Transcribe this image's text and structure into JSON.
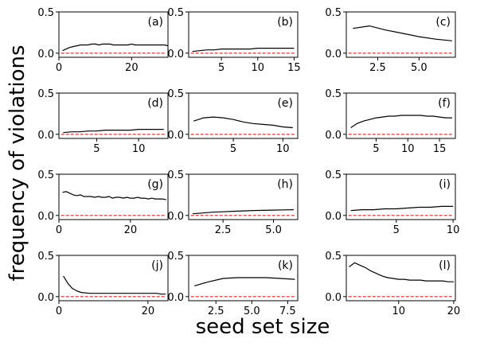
{
  "figure": {
    "ylabel": "frequency of violations",
    "xlabel": "seed set size"
  },
  "chart_data": [
    {
      "type": "line",
      "panel_label": "(a)",
      "x": [
        1,
        2,
        3,
        4,
        5,
        6,
        7,
        8,
        9,
        10,
        11,
        12,
        13,
        14,
        15,
        16,
        17,
        18,
        19,
        20,
        21,
        22,
        23,
        24,
        25,
        26,
        27,
        28,
        29,
        30
      ],
      "y": [
        0.03,
        0.05,
        0.07,
        0.08,
        0.09,
        0.1,
        0.1,
        0.1,
        0.11,
        0.11,
        0.1,
        0.11,
        0.11,
        0.11,
        0.1,
        0.1,
        0.1,
        0.1,
        0.1,
        0.11,
        0.1,
        0.1,
        0.1,
        0.1,
        0.1,
        0.1,
        0.1,
        0.1,
        0.1,
        0.09
      ],
      "reference_y": 0.0,
      "xlim": [
        0,
        30
      ],
      "ylim": [
        -0.05,
        0.5
      ],
      "xticks": [
        0,
        20
      ],
      "xtick_labels": [
        "0",
        "20"
      ],
      "yticks": [
        0.0,
        0.5
      ],
      "ytick_labels": [
        "0.0",
        "0.5"
      ]
    },
    {
      "type": "line",
      "panel_label": "(b)",
      "x": [
        1,
        2,
        3,
        4,
        5,
        6,
        7,
        8,
        9,
        10,
        11,
        12,
        13,
        14,
        15
      ],
      "y": [
        0.02,
        0.03,
        0.04,
        0.04,
        0.05,
        0.05,
        0.05,
        0.05,
        0.05,
        0.06,
        0.06,
        0.06,
        0.06,
        0.06,
        0.06
      ],
      "reference_y": 0.0,
      "xlim": [
        0.5,
        15.5
      ],
      "ylim": [
        -0.05,
        0.5
      ],
      "xticks": [
        5,
        10,
        15
      ],
      "xtick_labels": [
        "5",
        "10",
        "15"
      ],
      "yticks": [
        0.0,
        0.5
      ],
      "ytick_labels": [
        "0.0",
        "0.5"
      ]
    },
    {
      "type": "line",
      "panel_label": "(c)",
      "x": [
        1,
        2,
        3,
        4,
        5,
        6,
        7
      ],
      "y": [
        0.3,
        0.33,
        0.28,
        0.24,
        0.2,
        0.17,
        0.15
      ],
      "reference_y": 0.0,
      "xlim": [
        0.6,
        7.2
      ],
      "ylim": [
        -0.05,
        0.5
      ],
      "xticks": [
        2.5,
        5.0
      ],
      "xtick_labels": [
        "2.5",
        "5.0"
      ],
      "yticks": [
        0.0,
        0.5
      ],
      "ytick_labels": [
        "0.0",
        "0.5"
      ]
    },
    {
      "type": "line",
      "panel_label": "(d)",
      "x": [
        1,
        2,
        3,
        4,
        5,
        6,
        7,
        8,
        9,
        10,
        11,
        12,
        13
      ],
      "y": [
        0.02,
        0.03,
        0.03,
        0.04,
        0.04,
        0.05,
        0.05,
        0.05,
        0.05,
        0.06,
        0.06,
        0.06,
        0.06
      ],
      "reference_y": 0.0,
      "xlim": [
        0.5,
        13.5
      ],
      "ylim": [
        -0.05,
        0.5
      ],
      "xticks": [
        5,
        10
      ],
      "xtick_labels": [
        "5",
        "10"
      ],
      "yticks": [
        0.0,
        0.5
      ],
      "ytick_labels": [
        "0.0",
        "0.5"
      ]
    },
    {
      "type": "line",
      "panel_label": "(e)",
      "x": [
        1,
        2,
        3,
        4,
        5,
        6,
        7,
        8,
        9,
        10,
        11
      ],
      "y": [
        0.16,
        0.2,
        0.21,
        0.2,
        0.18,
        0.15,
        0.13,
        0.12,
        0.11,
        0.09,
        0.08
      ],
      "reference_y": 0.0,
      "xlim": [
        0.5,
        11.5
      ],
      "ylim": [
        -0.05,
        0.5
      ],
      "xticks": [
        5,
        10
      ],
      "xtick_labels": [
        "5",
        "10"
      ],
      "yticks": [
        0.0,
        0.5
      ],
      "ytick_labels": [
        "0.0",
        "0.5"
      ]
    },
    {
      "type": "line",
      "panel_label": "(f)",
      "x": [
        1,
        2,
        3,
        4,
        5,
        6,
        7,
        8,
        9,
        10,
        11,
        12,
        13,
        14,
        15,
        16,
        17
      ],
      "y": [
        0.08,
        0.13,
        0.16,
        0.18,
        0.2,
        0.21,
        0.22,
        0.22,
        0.23,
        0.23,
        0.23,
        0.23,
        0.22,
        0.22,
        0.21,
        0.2,
        0.2
      ],
      "reference_y": 0.0,
      "xlim": [
        0.3,
        17.5
      ],
      "ylim": [
        -0.05,
        0.5
      ],
      "xticks": [
        5,
        10,
        15
      ],
      "xtick_labels": [
        "5",
        "10",
        "15"
      ],
      "yticks": [
        0.0,
        0.5
      ],
      "ytick_labels": [
        "0.0",
        "0.5"
      ]
    },
    {
      "type": "line",
      "panel_label": "(g)",
      "x": [
        1,
        2,
        3,
        4,
        5,
        6,
        7,
        8,
        9,
        10,
        11,
        12,
        13,
        14,
        15,
        16,
        17,
        18,
        19,
        20,
        21,
        22,
        23,
        24,
        25,
        26,
        27,
        28,
        29,
        30
      ],
      "y": [
        0.28,
        0.29,
        0.27,
        0.25,
        0.24,
        0.25,
        0.23,
        0.23,
        0.23,
        0.22,
        0.23,
        0.22,
        0.22,
        0.23,
        0.21,
        0.22,
        0.22,
        0.21,
        0.22,
        0.21,
        0.21,
        0.22,
        0.21,
        0.21,
        0.2,
        0.21,
        0.2,
        0.2,
        0.2,
        0.19
      ],
      "reference_y": 0.0,
      "xlim": [
        0,
        30.5
      ],
      "ylim": [
        -0.05,
        0.5
      ],
      "xticks": [
        0,
        20
      ],
      "xtick_labels": [
        "0",
        "20"
      ],
      "yticks": [
        0.0,
        0.5
      ],
      "ytick_labels": [
        "0.0",
        "0.5"
      ]
    },
    {
      "type": "line",
      "panel_label": "(h)",
      "x": [
        1,
        1.5,
        2,
        2.5,
        3,
        3.5,
        4,
        4.5,
        5,
        5.5,
        6
      ],
      "y": [
        0.02,
        0.03,
        0.04,
        0.045,
        0.05,
        0.055,
        0.06,
        0.062,
        0.065,
        0.068,
        0.07
      ],
      "reference_y": 0.0,
      "xlim": [
        0.8,
        6.2
      ],
      "ylim": [
        -0.05,
        0.5
      ],
      "xticks": [
        2.5,
        5.0
      ],
      "xtick_labels": [
        "2.5",
        "5.0"
      ],
      "yticks": [
        0.0,
        0.5
      ],
      "ytick_labels": [
        "0.0",
        "0.5"
      ]
    },
    {
      "type": "line",
      "panel_label": "(i)",
      "x": [
        1,
        2,
        3,
        4,
        5,
        6,
        7,
        8,
        9,
        10
      ],
      "y": [
        0.06,
        0.07,
        0.07,
        0.08,
        0.08,
        0.09,
        0.1,
        0.1,
        0.11,
        0.11
      ],
      "reference_y": 0.0,
      "xlim": [
        0.6,
        10.2
      ],
      "ylim": [
        -0.05,
        0.5
      ],
      "xticks": [
        5,
        10
      ],
      "xtick_labels": [
        "5",
        "10"
      ],
      "yticks": [
        0.0,
        0.5
      ],
      "ytick_labels": [
        "0.0",
        "0.5"
      ]
    },
    {
      "type": "line",
      "panel_label": "(j)",
      "x": [
        1,
        2,
        3,
        4,
        5,
        6,
        7,
        8,
        9,
        10,
        11,
        12,
        13,
        14,
        15,
        16,
        17,
        18,
        19,
        20,
        21,
        22,
        23,
        24
      ],
      "y": [
        0.25,
        0.16,
        0.1,
        0.07,
        0.05,
        0.045,
        0.04,
        0.04,
        0.04,
        0.04,
        0.04,
        0.04,
        0.04,
        0.04,
        0.04,
        0.04,
        0.04,
        0.04,
        0.04,
        0.04,
        0.04,
        0.04,
        0.03,
        0.03
      ],
      "reference_y": 0.0,
      "xlim": [
        0,
        24.5
      ],
      "ylim": [
        -0.05,
        0.5
      ],
      "xticks": [
        0,
        20
      ],
      "xtick_labels": [
        "0",
        "20"
      ],
      "yticks": [
        0.0,
        0.5
      ],
      "ytick_labels": [
        "0.0",
        "0.5"
      ]
    },
    {
      "type": "line",
      "panel_label": "(k)",
      "x": [
        1,
        2,
        3,
        4,
        5,
        6,
        7,
        8
      ],
      "y": [
        0.13,
        0.18,
        0.22,
        0.23,
        0.23,
        0.23,
        0.22,
        0.21
      ],
      "reference_y": 0.0,
      "xlim": [
        0.6,
        8.2
      ],
      "ylim": [
        -0.05,
        0.5
      ],
      "xticks": [
        2.5,
        5.0,
        7.5
      ],
      "xtick_labels": [
        "2.5",
        "5.0",
        "7.5"
      ],
      "yticks": [
        0.0,
        0.5
      ],
      "ytick_labels": [
        "0.0",
        "0.5"
      ]
    },
    {
      "type": "line",
      "panel_label": "(l)",
      "x": [
        1,
        2,
        3,
        4,
        5,
        6,
        7,
        8,
        9,
        10,
        11,
        12,
        13,
        14,
        15,
        16,
        17,
        18,
        19,
        20
      ],
      "y": [
        0.36,
        0.41,
        0.38,
        0.35,
        0.31,
        0.28,
        0.25,
        0.23,
        0.22,
        0.21,
        0.21,
        0.2,
        0.2,
        0.2,
        0.19,
        0.19,
        0.19,
        0.19,
        0.18,
        0.18
      ],
      "reference_y": 0.0,
      "xlim": [
        0.5,
        20.3
      ],
      "ylim": [
        -0.05,
        0.5
      ],
      "xticks": [
        10,
        20
      ],
      "xtick_labels": [
        "10",
        "20"
      ],
      "yticks": [
        0.0,
        0.5
      ],
      "ytick_labels": [
        "0.0",
        "0.5"
      ]
    }
  ],
  "colors": {
    "series_line": "#000000",
    "reference_line": "#dd0000",
    "axes": "#000000"
  }
}
